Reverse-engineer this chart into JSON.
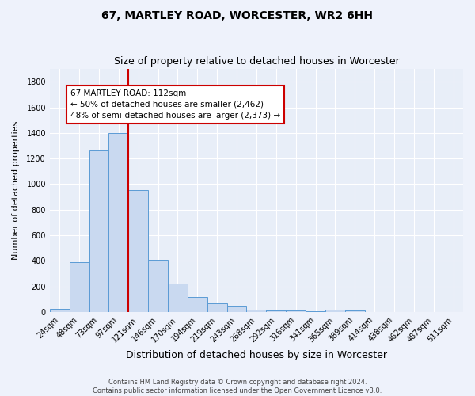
{
  "title": "67, MARTLEY ROAD, WORCESTER, WR2 6HH",
  "subtitle": "Size of property relative to detached houses in Worcester",
  "xlabel": "Distribution of detached houses by size in Worcester",
  "ylabel": "Number of detached properties",
  "footer_line1": "Contains HM Land Registry data © Crown copyright and database right 2024.",
  "footer_line2": "Contains public sector information licensed under the Open Government Licence v3.0.",
  "categories": [
    "24sqm",
    "48sqm",
    "73sqm",
    "97sqm",
    "121sqm",
    "146sqm",
    "170sqm",
    "194sqm",
    "219sqm",
    "243sqm",
    "268sqm",
    "292sqm",
    "316sqm",
    "341sqm",
    "365sqm",
    "389sqm",
    "414sqm",
    "438sqm",
    "462sqm",
    "487sqm",
    "511sqm"
  ],
  "values": [
    25,
    390,
    1260,
    1400,
    950,
    410,
    225,
    115,
    65,
    48,
    18,
    10,
    10,
    8,
    20,
    10,
    0,
    0,
    0,
    0,
    0
  ],
  "bar_color_face": "#c9d9f0",
  "bar_color_edge": "#5b9bd5",
  "ylim": [
    0,
    1900
  ],
  "yticks": [
    0,
    200,
    400,
    600,
    800,
    1000,
    1200,
    1400,
    1600,
    1800
  ],
  "property_line_x": 3.5,
  "property_line_color": "#cc0000",
  "annotation_text": "67 MARTLEY ROAD: 112sqm\n← 50% of detached houses are smaller (2,462)\n48% of semi-detached houses are larger (2,373) →",
  "annotation_box_color": "#ffffff",
  "annotation_box_edge": "#cc0000",
  "background_color": "#eef2fb",
  "plot_bg_color": "#e8eef8",
  "title_fontsize": 10,
  "subtitle_fontsize": 9,
  "xlabel_fontsize": 9,
  "ylabel_fontsize": 8,
  "tick_fontsize": 7,
  "footer_fontsize": 6,
  "ann_fontsize": 7.5
}
